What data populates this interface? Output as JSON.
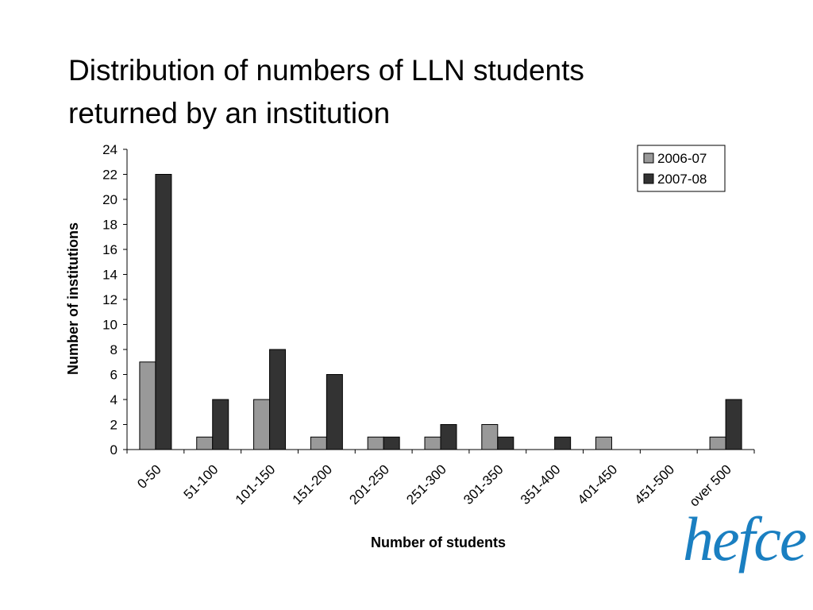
{
  "slide": {
    "title_line1": "Distribution of numbers of LLN students",
    "title_line2": "returned by an institution"
  },
  "logo": {
    "text": "hefce",
    "color": "#1a7fc1"
  },
  "chart_data": {
    "type": "bar",
    "xlabel": "Number of students",
    "ylabel": "Number of institutions",
    "ylim": [
      0,
      24
    ],
    "yticks": [
      0,
      2,
      4,
      6,
      8,
      10,
      12,
      14,
      16,
      18,
      20,
      22,
      24
    ],
    "grid": false,
    "legend_position": "top-right",
    "categories": [
      "0-50",
      "51-100",
      "101-150",
      "151-200",
      "201-250",
      "251-300",
      "301-350",
      "351-400",
      "401-450",
      "451-500",
      "over 500"
    ],
    "series": [
      {
        "name": "2006-07",
        "color": "#999999",
        "values": [
          7,
          1,
          4,
          1,
          1,
          1,
          2,
          0,
          1,
          0,
          1
        ]
      },
      {
        "name": "2007-08",
        "color": "#333333",
        "values": [
          22,
          4,
          8,
          6,
          1,
          2,
          1,
          1,
          0,
          0,
          4
        ]
      }
    ]
  }
}
